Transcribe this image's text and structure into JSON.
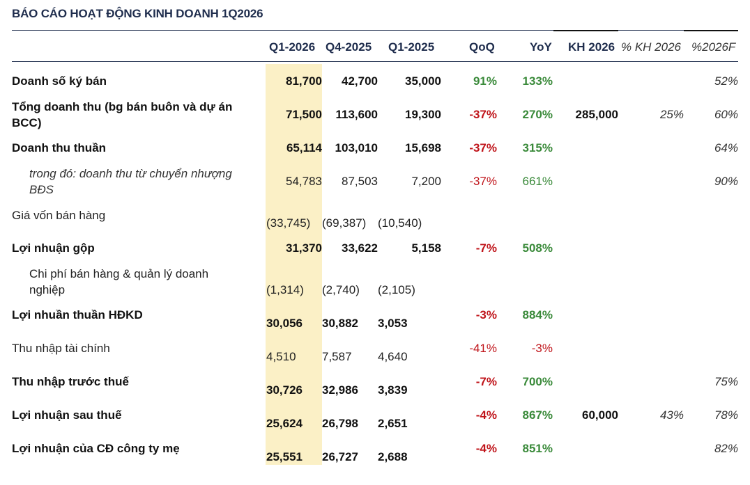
{
  "title": "BÁO CÁO HOẠT ĐỘNG KINH DOANH 1Q2026",
  "headers": [
    "Q1-2026",
    "Q4-2025",
    "Q1-2025",
    "QoQ",
    "YoY",
    "KH 2026",
    "% KH 2026",
    "%2026F"
  ],
  "colors": {
    "highlight": "#fbf0c6",
    "positive": "#3a8a3a",
    "negative": "#c0151b",
    "title": "#1f2d4d"
  },
  "rows": [
    {
      "label": "Doanh số ký bán",
      "q1_2026": "81,700",
      "q4_2025": "42,700",
      "q1_2025": "35,000",
      "qoq": "91%",
      "yoy": "133%",
      "kh": "",
      "pct_kh": "",
      "pct_f": "52%"
    },
    {
      "label_1": "Tổng doanh thu (bg bán buôn và dự án",
      "label_2": "BCC)",
      "q1_2026": "71,500",
      "q4_2025": "113,600",
      "q1_2025": "19,300",
      "qoq": "-37%",
      "yoy": "270%",
      "kh": "285,000",
      "pct_kh": "25%",
      "pct_f": "60%"
    },
    {
      "label": "Doanh thu thuần",
      "q1_2026": "65,114",
      "q4_2025": "103,010",
      "q1_2025": "15,698",
      "qoq": "-37%",
      "yoy": "315%",
      "kh": "",
      "pct_kh": "",
      "pct_f": "64%"
    },
    {
      "label_1": "trong đó: doanh thu từ chuyển nhượng",
      "label_2": "BĐS",
      "q1_2026": "54,783",
      "q4_2025": "87,503",
      "q1_2025": "7,200",
      "qoq": "-37%",
      "yoy": "661%",
      "kh": "",
      "pct_kh": "",
      "pct_f": "90%"
    },
    {
      "label": "Giá vốn bán hàng",
      "q1_2026": "(33,745)",
      "q4_2025": "(69,387)",
      "q1_2025": "(10,540)",
      "qoq": "",
      "yoy": "",
      "kh": "",
      "pct_kh": "",
      "pct_f": ""
    },
    {
      "label": "Lợi nhuận gộp",
      "q1_2026": "31,370",
      "q4_2025": "33,622",
      "q1_2025": "5,158",
      "qoq": "-7%",
      "yoy": "508%",
      "kh": "",
      "pct_kh": "",
      "pct_f": ""
    },
    {
      "label_1": "Chi phí bán hàng & quản lý doanh",
      "label_2": "nghiệp",
      "q1_2026": "(1,314)",
      "q4_2025": "(2,740)",
      "q1_2025": "(2,105)",
      "qoq": "",
      "yoy": "",
      "kh": "",
      "pct_kh": "",
      "pct_f": ""
    },
    {
      "label": "Lợi nhuần thuần HĐKD",
      "q1_2026": "30,056",
      "q4_2025": "30,882",
      "q1_2025": "3,053",
      "qoq": "-3%",
      "yoy": "884%",
      "kh": "",
      "pct_kh": "",
      "pct_f": ""
    },
    {
      "label": "Thu nhập tài chính",
      "q1_2026": "4,510",
      "q4_2025": "7,587",
      "q1_2025": "4,640",
      "qoq": "-41%",
      "yoy": "-3%",
      "kh": "",
      "pct_kh": "",
      "pct_f": ""
    },
    {
      "label": "Thu nhập trước thuế",
      "q1_2026": "30,726",
      "q4_2025": "32,986",
      "q1_2025": "3,839",
      "qoq": "-7%",
      "yoy": "700%",
      "kh": "",
      "pct_kh": "",
      "pct_f": "75%"
    },
    {
      "label": "Lợi nhuận sau thuế",
      "q1_2026": "25,624",
      "q4_2025": "26,798",
      "q1_2025": "2,651",
      "qoq": "-4%",
      "yoy": "867%",
      "kh": "60,000",
      "pct_kh": "43%",
      "pct_f": "78%"
    },
    {
      "label": "Lợi nhuận của CĐ công ty mẹ",
      "q1_2026": "25,551",
      "q4_2025": "26,727",
      "q1_2025": "2,688",
      "qoq": "-4%",
      "yoy": "851%",
      "kh": "",
      "pct_kh": "",
      "pct_f": "82%"
    }
  ]
}
